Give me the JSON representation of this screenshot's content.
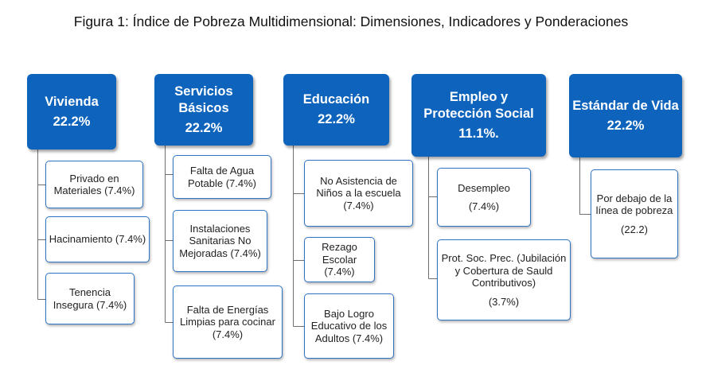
{
  "title": "Figura 1: Índice de Pobreza Multidimensional: Dimensiones, Indicadores y Ponderaciones",
  "colors": {
    "header_fill": "#0E64BC",
    "box_border": "#2E75C5",
    "connector": "#6F6F6F"
  },
  "dimensions": [
    {
      "name": "Vivienda",
      "weight": "22.2%",
      "indicators": [
        {
          "label": "Privado en Materiales (7.4%)"
        },
        {
          "label": "Hacinamiento (7.4%)"
        },
        {
          "label": "Tenencia Insegura (7.4%)"
        }
      ]
    },
    {
      "name": "Servicios Básicos",
      "weight": "22.2%",
      "indicators": [
        {
          "label": "Falta de Agua Potable (7.4%)"
        },
        {
          "label": "Instalaciones Sanitarias No Mejoradas (7.4%)"
        },
        {
          "label": "Falta de Energías Limpias para cocinar (7.4%)"
        }
      ]
    },
    {
      "name": "Educación",
      "weight": "22.2%",
      "indicators": [
        {
          "label": "No Asistencia de Niños a la escuela",
          "weight": "(7.4%)"
        },
        {
          "label": "Rezago Escolar (7.4%)"
        },
        {
          "label": "Bajo Logro Educativo de los Adultos (7.4%)"
        }
      ]
    },
    {
      "name": "Empleo y Protección Social",
      "weight": "11.1%.",
      "indicators": [
        {
          "label": "Desempleo",
          "weight": "(7.4%)"
        },
        {
          "label": "Prot. Soc. Prec. (Jubilación y Cobertura de Sauld Contributivos)",
          "weight": "(3.7%)"
        }
      ]
    },
    {
      "name": "Estándar de Vida",
      "weight": "22.2%",
      "indicators": [
        {
          "label": "Por debajo de la línea de pobreza",
          "weight": "(22.2)"
        }
      ]
    }
  ]
}
